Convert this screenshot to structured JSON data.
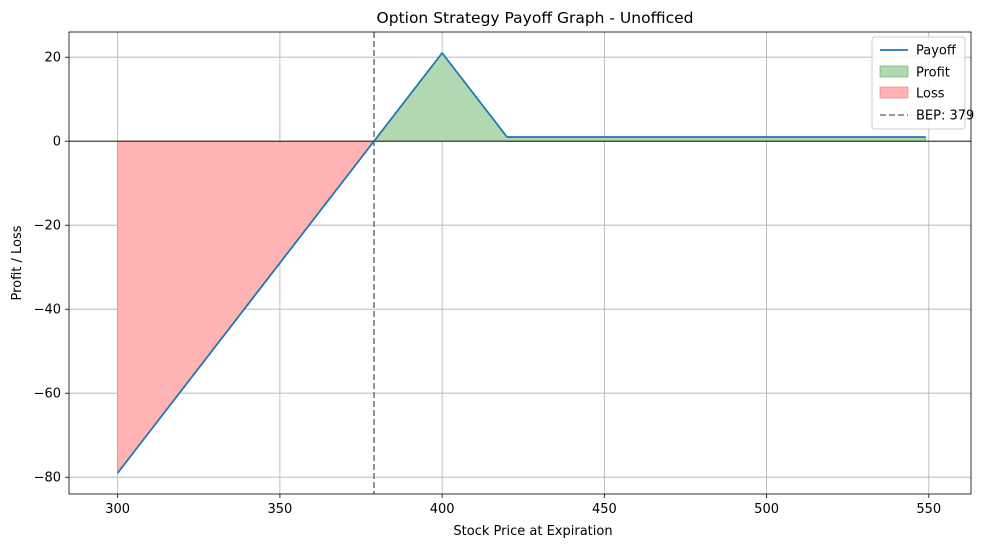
{
  "chart_data": {
    "type": "line",
    "title": "Option Strategy Payoff Graph - Unofficed",
    "xlabel": "Stock Price at Expiration",
    "ylabel": "Profit / Loss",
    "xlim": [
      285,
      563
    ],
    "ylim": [
      -84,
      26
    ],
    "xticks": [
      300,
      350,
      400,
      450,
      500,
      550
    ],
    "yticks": [
      -80,
      -60,
      -40,
      -20,
      0,
      20
    ],
    "x_tick_labels": [
      "300",
      "350",
      "400",
      "450",
      "500",
      "550"
    ],
    "y_tick_labels": [
      "−80",
      "−60",
      "−40",
      "−20",
      "0",
      "20"
    ],
    "grid": true,
    "legend_position": "top-right",
    "series": [
      {
        "name": "Payoff",
        "x": [
          300,
          400,
          420,
          549
        ],
        "y": [
          -79,
          21,
          1,
          1
        ]
      }
    ],
    "fills": [
      {
        "name": "Profit",
        "from_x": 379,
        "to_x": 549
      },
      {
        "name": "Loss",
        "from_x": 300,
        "to_x": 379
      }
    ],
    "reference_lines": [
      {
        "name": "BEP: 379",
        "x": 379,
        "style": "dashed"
      }
    ],
    "legend": [
      "Payoff",
      "Profit",
      "Loss",
      "BEP: 379"
    ],
    "colors": {
      "payoff": "#1f77b4",
      "profit_fill": "#b2d8b2",
      "profit_edge": "#4caf50",
      "loss_fill": "#ffb3b3",
      "loss_edge": "#ff6666",
      "bep": "#777777",
      "grid": "#b0b0b0"
    }
  }
}
